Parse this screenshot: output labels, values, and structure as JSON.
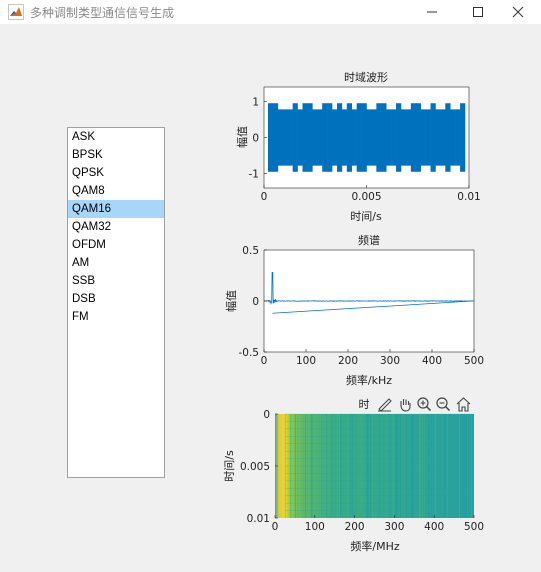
{
  "window": {
    "title": "多种调制类型通信信号生成",
    "controls": [
      "minimize",
      "maximize",
      "close"
    ]
  },
  "listbox": {
    "items": [
      "ASK",
      "BPSK",
      "QPSK",
      "QAM8",
      "QAM16",
      "QAM32",
      "OFDM",
      "AM",
      "SSB",
      "DSB",
      "FM"
    ],
    "selected": "QAM16"
  },
  "axes_toolbar": {
    "icons": [
      "brush-icon",
      "pan-icon",
      "zoom-in-icon",
      "zoom-out-icon",
      "home-icon"
    ]
  },
  "chart_data": [
    {
      "type": "line",
      "title": "时域波形",
      "xlabel": "时间/s",
      "ylabel": "幅值",
      "xlim": [
        0,
        0.01
      ],
      "ylim": [
        -1.4,
        1.4
      ],
      "xticks": [
        "0",
        "0.005",
        "0.01"
      ],
      "yticks": [
        "1",
        "0",
        "-1"
      ],
      "series": [
        {
          "color": "#0072bd"
        }
      ]
    },
    {
      "type": "line",
      "title": "频谱",
      "xlabel": "频率/kHz",
      "ylabel": "幅值",
      "xlim": [
        0,
        500
      ],
      "ylim": [
        -0.5,
        0.5
      ],
      "xticks": [
        "0",
        "100",
        "200",
        "300",
        "400",
        "500"
      ],
      "yticks": [
        "0.5",
        "0",
        "-0.5"
      ],
      "series": [
        {
          "color": "#0072bd",
          "peak_x": 20,
          "peak_y": 0.28
        }
      ]
    },
    {
      "type": "heatmap",
      "title": "时",
      "xlabel": "频率/MHz",
      "ylabel": "时间/s",
      "xlim": [
        0,
        500
      ],
      "ylim": [
        0,
        0.01
      ],
      "xticks": [
        "0",
        "100",
        "200",
        "300",
        "400",
        "500"
      ],
      "yticks": [
        "0",
        "0.005",
        "0.01"
      ]
    }
  ]
}
